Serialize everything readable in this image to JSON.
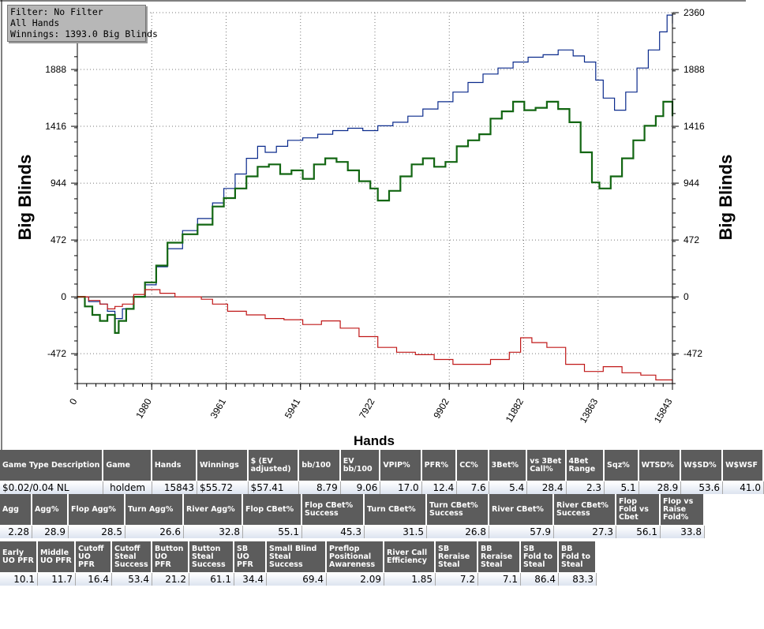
{
  "filter_box": {
    "line1": "Filter: No Filter",
    "line2": "All Hands",
    "line3": "Winnings: 1393.0 Big Blinds"
  },
  "chart_data": {
    "type": "line",
    "xlabel": "Hands",
    "ylabel": "Big Blinds",
    "xlim": [
      0,
      15843
    ],
    "ylim": [
      -720,
      2360
    ],
    "x_ticks": [
      "0",
      "1980",
      "3961",
      "5941",
      "7922",
      "9902",
      "11882",
      "13863",
      "15843"
    ],
    "y_ticks": [
      "2360",
      "1888",
      "1416",
      "944",
      "472",
      "0",
      "-472"
    ],
    "y_tick_values": [
      2360,
      1888,
      1416,
      944,
      472,
      0,
      -472
    ],
    "grid": true,
    "series": [
      {
        "color": "#0a2a8c",
        "x": [
          0,
          300,
          600,
          800,
          1000,
          1200,
          1500,
          1800,
          2100,
          2400,
          2800,
          3200,
          3600,
          3900,
          4200,
          4500,
          4800,
          5000,
          5300,
          5600,
          6000,
          6400,
          6800,
          7200,
          7600,
          8000,
          8400,
          8800,
          9200,
          9600,
          10000,
          10400,
          10800,
          11200,
          11600,
          12000,
          12400,
          12800,
          13200,
          13500,
          13800,
          14000,
          14300,
          14600,
          14900,
          15200,
          15500,
          15700,
          15843
        ],
        "y": [
          0,
          -40,
          -60,
          -120,
          -180,
          -100,
          0,
          100,
          250,
          400,
          550,
          650,
          780,
          900,
          1020,
          1150,
          1250,
          1200,
          1250,
          1300,
          1320,
          1350,
          1380,
          1400,
          1380,
          1420,
          1450,
          1500,
          1560,
          1620,
          1700,
          1780,
          1850,
          1900,
          1950,
          1990,
          2010,
          2050,
          2000,
          1950,
          1800,
          1650,
          1550,
          1700,
          1900,
          2050,
          2200,
          2340,
          2270
        ]
      },
      {
        "color": "#126612",
        "x": [
          0,
          200,
          400,
          600,
          800,
          1000,
          1100,
          1300,
          1500,
          1800,
          2100,
          2400,
          2800,
          3200,
          3600,
          3900,
          4200,
          4500,
          4800,
          5100,
          5400,
          5700,
          6000,
          6300,
          6600,
          6900,
          7200,
          7500,
          7800,
          8000,
          8300,
          8600,
          8900,
          9200,
          9500,
          9800,
          10100,
          10400,
          10700,
          11000,
          11300,
          11600,
          11900,
          12200,
          12500,
          12800,
          13100,
          13400,
          13700,
          13900,
          14200,
          14500,
          14800,
          15100,
          15400,
          15600,
          15843
        ],
        "y": [
          0,
          -80,
          -150,
          -200,
          -150,
          -300,
          -200,
          -100,
          0,
          120,
          260,
          450,
          520,
          600,
          750,
          820,
          900,
          1000,
          1080,
          1100,
          1020,
          1050,
          980,
          1100,
          1150,
          1120,
          1050,
          960,
          900,
          800,
          880,
          1000,
          1100,
          1150,
          1080,
          1120,
          1250,
          1300,
          1350,
          1480,
          1540,
          1620,
          1550,
          1570,
          1620,
          1560,
          1450,
          1200,
          950,
          900,
          1000,
          1150,
          1300,
          1420,
          1500,
          1620,
          1500
        ]
      },
      {
        "color": "#c01818",
        "x": [
          0,
          300,
          600,
          800,
          1000,
          1200,
          1500,
          1800,
          2200,
          2600,
          3000,
          3300,
          3600,
          4000,
          4500,
          5000,
          5500,
          6000,
          6500,
          7000,
          7500,
          8000,
          8500,
          9000,
          9500,
          10000,
          10500,
          11000,
          11500,
          11800,
          12100,
          12500,
          13000,
          13500,
          14000,
          14500,
          15000,
          15400,
          15843
        ],
        "y": [
          0,
          -30,
          -60,
          -100,
          -80,
          -60,
          20,
          60,
          30,
          0,
          0,
          -20,
          -60,
          -120,
          -150,
          -180,
          -190,
          -230,
          -200,
          -260,
          -330,
          -420,
          -460,
          -480,
          -520,
          -560,
          -560,
          -520,
          -460,
          -340,
          -380,
          -420,
          -560,
          -620,
          -580,
          -630,
          -650,
          -690,
          -720
        ]
      }
    ]
  },
  "table1": {
    "headers": [
      "Game Type Description",
      "Game",
      "Hands",
      "Winnings",
      "$ (EV adjusted)",
      "bb/100",
      "EV bb/100",
      "VPIP%",
      "PFR%",
      "CC%",
      "3Bet%",
      "vs 3Bet Call%",
      "4Bet Range",
      "Sqz%",
      "WTSD%",
      "W$SD%",
      "W$WSF"
    ],
    "values": [
      "$0.02/0.04 NL",
      "holdem",
      "15843",
      "$55.72",
      "$57.41",
      "8.79",
      "9.06",
      "17.0",
      "12.4",
      "7.6",
      "5.4",
      "28.4",
      "2.3",
      "5.1",
      "28.9",
      "53.6",
      "41.0"
    ]
  },
  "table2": {
    "headers": [
      "Agg",
      "Agg%",
      "Flop Agg%",
      "Turn Agg%",
      "River Agg%",
      "Flop CBet%",
      "Flop CBet% Success",
      "Turn CBet%",
      "Turn CBet% Success",
      "River CBet%",
      "River CBet% Success",
      "Flop Fold vs Cbet",
      "Flop vs Raise Fold%"
    ],
    "values": [
      "2.28",
      "28.9",
      "28.5",
      "26.6",
      "32.8",
      "55.1",
      "45.3",
      "31.5",
      "26.8",
      "57.9",
      "27.3",
      "56.1",
      "33.8"
    ]
  },
  "table3": {
    "headers": [
      "Early UO PFR",
      "Middle UO PFR",
      "Cutoff UO PFR",
      "Cutoff Steal Success",
      "Button UO PFR",
      "Button Steal Success",
      "SB UO PFR",
      "Small Blind Steal Success",
      "Preflop Positional Awareness",
      "River Call Efficiency",
      "SB Reraise Steal",
      "BB Reraise Steal",
      "SB Fold to Steal",
      "BB Fold to Steal"
    ],
    "values": [
      "10.1",
      "11.7",
      "16.4",
      "53.4",
      "21.2",
      "61.1",
      "34.4",
      "69.4",
      "2.09",
      "1.85",
      "7.2",
      "7.1",
      "86.4",
      "83.3"
    ]
  }
}
